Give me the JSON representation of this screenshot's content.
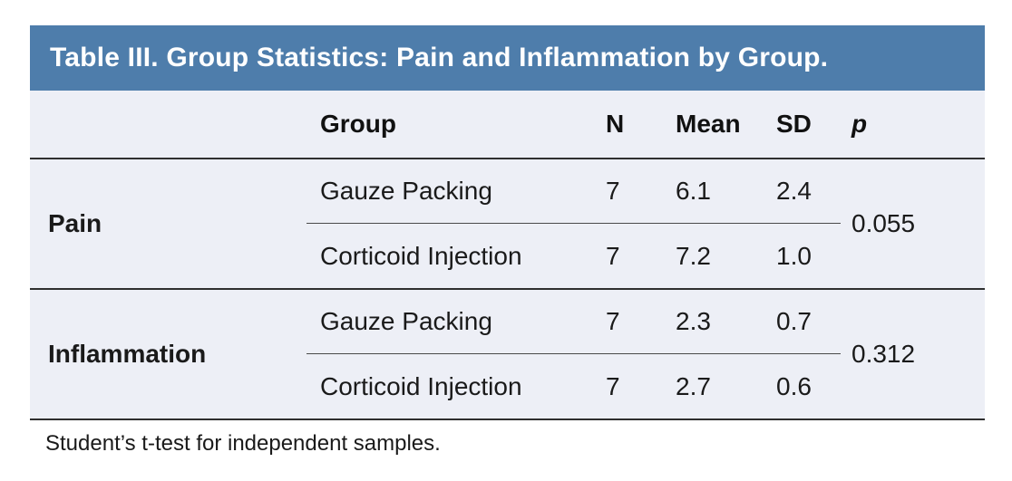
{
  "table": {
    "title": "Table III. Group Statistics: Pain and Inflammation by Group.",
    "columns": {
      "category": "",
      "group": "Group",
      "n": "N",
      "mean": "Mean",
      "sd": "SD",
      "p": "p"
    },
    "sections": [
      {
        "category": "Pain",
        "p_value": "0.055",
        "rows": [
          {
            "group": "Gauze Packing",
            "n": "7",
            "mean": "6.1",
            "sd": "2.4"
          },
          {
            "group": "Corticoid Injection",
            "n": "7",
            "mean": "7.2",
            "sd": "1.0"
          }
        ]
      },
      {
        "category": "Inflammation",
        "p_value": "0.312",
        "rows": [
          {
            "group": "Gauze Packing",
            "n": "7",
            "mean": "2.3",
            "sd": "0.7"
          },
          {
            "group": "Corticoid Injection",
            "n": "7",
            "mean": "2.7",
            "sd": "0.6"
          }
        ]
      }
    ],
    "footnote": "Student’s t-test for independent samples.",
    "colors": {
      "title_bg": "#4E7DAB",
      "title_text": "#FFFFFF",
      "body_bg": "#EDEFF6",
      "rule_dark": "#2F2F2F",
      "rule_light": "#4A4A4A",
      "text": "#1A1A1A"
    }
  }
}
